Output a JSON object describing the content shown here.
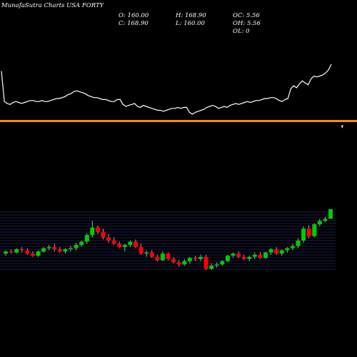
{
  "header": {
    "title": "MunafaSutra Charts USA FORTY",
    "open": "O: 160.00",
    "close": "C: 168.90",
    "high": "H: 168.90",
    "low": "L: 160.00",
    "oc": "OC: 5.56",
    "oh": "OH: 5.56",
    "ol": "OL: 0"
  },
  "colors": {
    "background": "#000000",
    "up": "#00cc00",
    "down": "#ff0000",
    "line": "#ffffff",
    "separator": "#ff8c00",
    "grid": "#3a3a99"
  },
  "chart_data": [
    {
      "type": "line",
      "name": "indicator",
      "values": [
        78,
        47,
        45,
        44,
        46,
        47,
        46,
        45,
        46,
        47,
        48,
        48,
        47,
        47,
        48,
        47,
        47,
        48,
        49,
        50,
        50,
        51,
        52,
        54,
        55,
        57,
        58,
        57,
        56,
        55,
        53,
        52,
        51,
        51,
        50,
        49,
        49,
        48,
        47,
        47,
        49,
        49,
        44,
        42,
        43,
        44,
        45,
        42,
        41,
        43,
        42,
        41,
        40,
        39,
        38,
        38,
        37,
        38,
        39,
        40,
        40,
        41,
        40,
        41,
        41,
        36,
        34,
        36,
        37,
        38,
        39,
        41,
        42,
        43,
        42,
        40,
        41,
        42,
        41,
        43,
        44,
        45,
        44,
        45,
        46,
        47,
        46,
        47,
        48,
        48,
        49,
        50,
        50,
        51,
        51,
        50,
        48,
        47,
        49,
        50,
        60,
        63,
        61,
        65,
        68,
        66,
        64,
        70,
        73,
        72,
        73,
        74,
        76,
        79,
        85
      ]
    },
    {
      "type": "candlestick",
      "name": "price",
      "ohlc": [
        [
          128,
          131,
          126,
          130
        ],
        [
          130,
          132,
          128,
          129
        ],
        [
          129,
          133,
          128,
          132
        ],
        [
          132,
          134,
          129,
          131
        ],
        [
          131,
          133,
          127,
          128
        ],
        [
          128,
          130,
          125,
          126
        ],
        [
          126,
          131,
          125,
          130
        ],
        [
          130,
          134,
          129,
          133
        ],
        [
          133,
          136,
          131,
          134
        ],
        [
          134,
          137,
          130,
          132
        ],
        [
          132,
          134,
          129,
          130
        ],
        [
          130,
          133,
          128,
          132
        ],
        [
          132,
          135,
          130,
          133
        ],
        [
          133,
          138,
          131,
          136
        ],
        [
          136,
          140,
          134,
          139
        ],
        [
          139,
          147,
          137,
          145
        ],
        [
          145,
          158,
          143,
          152
        ],
        [
          152,
          154,
          146,
          148
        ],
        [
          148,
          151,
          141,
          143
        ],
        [
          143,
          146,
          138,
          140
        ],
        [
          140,
          143,
          136,
          137
        ],
        [
          137,
          139,
          133,
          134
        ],
        [
          134,
          137,
          130,
          136
        ],
        [
          136,
          140,
          134,
          139
        ],
        [
          139,
          141,
          133,
          134
        ],
        [
          134,
          137,
          127,
          128
        ],
        [
          128,
          131,
          125,
          129
        ],
        [
          129,
          131,
          124,
          125
        ],
        [
          125,
          127,
          121,
          122
        ],
        [
          122,
          130,
          121,
          128
        ],
        [
          128,
          129,
          122,
          123
        ],
        [
          123,
          125,
          119,
          120
        ],
        [
          120,
          122,
          116,
          118
        ],
        [
          118,
          123,
          117,
          121
        ],
        [
          121,
          125,
          119,
          124
        ],
        [
          124,
          126,
          121,
          123
        ],
        [
          123,
          127,
          121,
          125
        ],
        [
          125,
          127,
          113,
          114
        ],
        [
          114,
          119,
          113,
          117
        ],
        [
          117,
          120,
          115,
          118
        ],
        [
          118,
          122,
          117,
          121
        ],
        [
          121,
          127,
          120,
          126
        ],
        [
          126,
          129,
          124,
          128
        ],
        [
          128,
          130,
          124,
          125
        ],
        [
          125,
          127,
          122,
          123
        ],
        [
          123,
          126,
          121,
          125
        ],
        [
          125,
          129,
          123,
          127
        ],
        [
          127,
          129,
          123,
          124
        ],
        [
          124,
          130,
          123,
          129
        ],
        [
          129,
          133,
          127,
          132
        ],
        [
          132,
          134,
          127,
          128
        ],
        [
          128,
          132,
          126,
          131
        ],
        [
          131,
          134,
          129,
          133
        ],
        [
          133,
          137,
          131,
          135
        ],
        [
          135,
          142,
          133,
          140
        ],
        [
          140,
          153,
          138,
          151
        ],
        [
          151,
          154,
          142,
          144
        ],
        [
          144,
          156,
          143,
          155
        ],
        [
          155,
          160,
          153,
          158
        ],
        [
          158,
          162,
          157,
          160
        ],
        [
          160,
          168.9,
          160,
          168.9
        ]
      ]
    }
  ]
}
